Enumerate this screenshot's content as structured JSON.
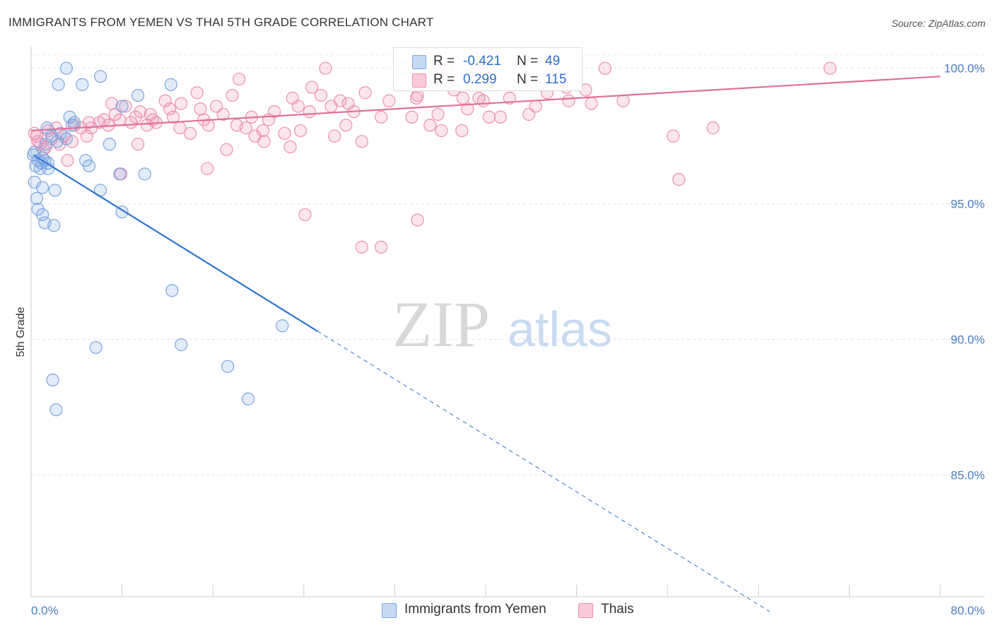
{
  "title": "IMMIGRANTS FROM YEMEN VS THAI 5TH GRADE CORRELATION CHART",
  "source": "Source: ZipAtlas.com",
  "watermark": {
    "zip": "ZIP",
    "atlas": "atlas"
  },
  "legend": {
    "r_label": "R =",
    "n_label": "N =",
    "series": [
      {
        "name": "Immigrants from Yemen",
        "r": "-0.421",
        "n": "49",
        "color": "#7aa6e0",
        "fill": "#c6d9f3"
      },
      {
        "name": "Thais",
        "r": "0.299",
        "n": "115",
        "color": "#ee8fb0",
        "fill": "#f9cadb"
      }
    ]
  },
  "chart_data": {
    "type": "scatter",
    "title": "IMMIGRANTS FROM YEMEN VS THAI 5TH GRADE CORRELATION CHART",
    "xlabel": "",
    "ylabel": "5th Grade",
    "xlim": [
      0,
      80
    ],
    "ylim": [
      80.5,
      100.8
    ],
    "x_tick_labels": [
      "0.0%",
      "80.0%"
    ],
    "y_ticks": [
      85,
      90,
      95,
      100
    ],
    "y_tick_labels": [
      "85.0%",
      "90.0%",
      "95.0%",
      "100.0%"
    ],
    "grid": true,
    "series": [
      {
        "name": "Immigrants from Yemen",
        "color": "#7aa6e0",
        "trend": {
          "x": [
            0.2,
            25.2
          ],
          "y": [
            96.8,
            90.3
          ],
          "extend_dashed_to_x": 65
        },
        "points": [
          [
            3.1,
            100
          ],
          [
            2.4,
            99.4
          ],
          [
            4.5,
            99.4
          ],
          [
            6.1,
            99.7
          ],
          [
            12.3,
            99.4
          ],
          [
            9.4,
            99.0
          ],
          [
            8.0,
            98.6
          ],
          [
            1.4,
            97.8
          ],
          [
            3.4,
            98.2
          ],
          [
            3.8,
            98.0
          ],
          [
            1.8,
            97.5
          ],
          [
            2.3,
            97.3
          ],
          [
            3.1,
            97.4
          ],
          [
            6.9,
            97.2
          ],
          [
            1.0,
            96.7
          ],
          [
            0.6,
            96.6
          ],
          [
            1.2,
            96.6
          ],
          [
            1.5,
            96.5
          ],
          [
            0.4,
            96.4
          ],
          [
            0.8,
            96.3
          ],
          [
            1.5,
            96.3
          ],
          [
            4.8,
            96.6
          ],
          [
            5.1,
            96.4
          ],
          [
            7.8,
            96.1
          ],
          [
            10.0,
            96.1
          ],
          [
            0.3,
            95.8
          ],
          [
            1.0,
            95.6
          ],
          [
            2.1,
            95.5
          ],
          [
            6.1,
            95.5
          ],
          [
            0.5,
            95.2
          ],
          [
            0.6,
            94.8
          ],
          [
            1.0,
            94.6
          ],
          [
            1.2,
            94.3
          ],
          [
            2.0,
            94.2
          ],
          [
            8.0,
            94.7
          ],
          [
            12.4,
            91.8
          ],
          [
            22.1,
            90.5
          ],
          [
            5.7,
            89.7
          ],
          [
            13.2,
            89.8
          ],
          [
            17.3,
            89.0
          ],
          [
            1.9,
            88.5
          ],
          [
            2.2,
            87.4
          ],
          [
            19.1,
            87.8
          ],
          [
            0.2,
            96.8
          ],
          [
            0.9,
            96.5
          ],
          [
            2.6,
            97.6
          ],
          [
            1.3,
            97.2
          ],
          [
            0.3,
            96.9
          ],
          [
            3.6,
            97.9
          ]
        ]
      },
      {
        "name": "Thais",
        "color": "#ee8fb0",
        "trend": {
          "x": [
            0,
            80
          ],
          "y": [
            97.7,
            99.7
          ]
        },
        "points": [
          [
            25.9,
            100
          ],
          [
            32.7,
            100
          ],
          [
            36.5,
            100
          ],
          [
            39.3,
            100
          ],
          [
            50.5,
            100
          ],
          [
            70.3,
            100
          ],
          [
            18.3,
            99.6
          ],
          [
            40.0,
            99.7
          ],
          [
            36.8,
            99.5
          ],
          [
            24.7,
            99.3
          ],
          [
            29.4,
            99.1
          ],
          [
            34.0,
            99.0
          ],
          [
            37.2,
            99.2
          ],
          [
            39.4,
            98.9
          ],
          [
            42.1,
            98.9
          ],
          [
            47.3,
            98.8
          ],
          [
            17.7,
            99.0
          ],
          [
            14.6,
            99.1
          ],
          [
            23.0,
            98.9
          ],
          [
            27.2,
            98.8
          ],
          [
            13.2,
            98.7
          ],
          [
            11.8,
            98.8
          ],
          [
            12.2,
            98.5
          ],
          [
            8.3,
            98.6
          ],
          [
            7.1,
            98.7
          ],
          [
            9.6,
            98.4
          ],
          [
            10.5,
            98.3
          ],
          [
            14.9,
            98.5
          ],
          [
            16.3,
            98.6
          ],
          [
            19.4,
            98.2
          ],
          [
            21.4,
            98.4
          ],
          [
            24.5,
            98.4
          ],
          [
            26.4,
            98.6
          ],
          [
            28.4,
            98.4
          ],
          [
            30.8,
            98.2
          ],
          [
            33.5,
            98.2
          ],
          [
            35.8,
            98.3
          ],
          [
            6.4,
            98.1
          ],
          [
            7.8,
            98.1
          ],
          [
            9.2,
            98.2
          ],
          [
            11.0,
            98.0
          ],
          [
            5.1,
            98.0
          ],
          [
            3.8,
            97.9
          ],
          [
            2.2,
            97.8
          ],
          [
            1.5,
            97.7
          ],
          [
            4.4,
            97.8
          ],
          [
            6.8,
            97.9
          ],
          [
            13.1,
            97.8
          ],
          [
            15.6,
            97.9
          ],
          [
            18.1,
            97.9
          ],
          [
            20.4,
            97.7
          ],
          [
            22.3,
            97.6
          ],
          [
            23.7,
            97.7
          ],
          [
            27.7,
            97.9
          ],
          [
            35.1,
            97.9
          ],
          [
            36.1,
            97.7
          ],
          [
            14.0,
            97.6
          ],
          [
            10.2,
            97.9
          ],
          [
            19.7,
            97.5
          ],
          [
            17.2,
            97.0
          ],
          [
            20.5,
            97.3
          ],
          [
            22.8,
            97.1
          ],
          [
            26.7,
            97.5
          ],
          [
            29.1,
            97.3
          ],
          [
            0.5,
            97.5
          ],
          [
            1.8,
            97.4
          ],
          [
            2.9,
            97.5
          ],
          [
            4.9,
            97.5
          ],
          [
            0.8,
            97.2
          ],
          [
            1.3,
            97.1
          ],
          [
            9.4,
            97.2
          ],
          [
            3.2,
            96.6
          ],
          [
            15.5,
            96.3
          ],
          [
            7.9,
            96.1
          ],
          [
            40.3,
            98.2
          ],
          [
            38.4,
            98.5
          ],
          [
            43.8,
            98.3
          ],
          [
            52.1,
            98.8
          ],
          [
            47.1,
            99.3
          ],
          [
            60.0,
            97.8
          ],
          [
            56.5,
            97.5
          ],
          [
            57.0,
            95.9
          ],
          [
            24.1,
            94.6
          ],
          [
            34.0,
            94.4
          ],
          [
            29.1,
            93.4
          ],
          [
            30.8,
            93.4
          ],
          [
            0.3,
            97.6
          ],
          [
            0.6,
            97.3
          ],
          [
            1.1,
            97.0
          ],
          [
            2.5,
            97.2
          ],
          [
            3.6,
            97.3
          ],
          [
            5.3,
            97.8
          ],
          [
            6.0,
            98.0
          ],
          [
            7.4,
            98.3
          ],
          [
            8.8,
            98.0
          ],
          [
            10.7,
            98.1
          ],
          [
            12.5,
            98.2
          ],
          [
            15.2,
            98.1
          ],
          [
            16.9,
            98.3
          ],
          [
            18.9,
            97.8
          ],
          [
            20.9,
            98.1
          ],
          [
            23.5,
            98.6
          ],
          [
            25.5,
            99.0
          ],
          [
            27.9,
            98.7
          ],
          [
            31.5,
            98.8
          ],
          [
            33.9,
            98.9
          ],
          [
            38.0,
            98.9
          ],
          [
            41.3,
            98.2
          ],
          [
            44.4,
            98.6
          ],
          [
            45.4,
            99.1
          ],
          [
            48.8,
            99.2
          ],
          [
            49.3,
            98.7
          ],
          [
            35.3,
            99.5
          ],
          [
            39.8,
            98.8
          ],
          [
            37.9,
            97.7
          ]
        ]
      }
    ]
  }
}
